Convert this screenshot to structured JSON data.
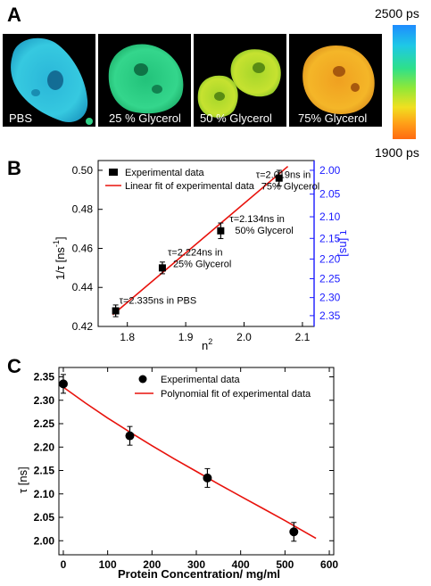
{
  "panels": {
    "a": {
      "letter": "A"
    },
    "b": {
      "letter": "B"
    },
    "c": {
      "letter": "C"
    }
  },
  "panel_a": {
    "image_labels": [
      "PBS",
      "25 % Glycerol",
      "50 % Glycerol",
      "75% Glycerol"
    ],
    "colorbar": {
      "top_label": "2500 ps",
      "bottom_label": "1900 ps"
    }
  },
  "chart_data": [
    {
      "panel": "B",
      "type": "scatter",
      "xlabel": "n",
      "xlabel_superscript": "2",
      "ylabel": "1/τ  [ns",
      "ylabel_superscript": "-1",
      "ylabel_suffix": "]",
      "y2label": "τ [ns]",
      "xlim": [
        1.75,
        2.12
      ],
      "ylim": [
        0.42,
        0.505
      ],
      "xticks": [
        "1.8",
        "1.9",
        "2.0",
        "2.1"
      ],
      "yticks": [
        "0.42",
        "0.44",
        "0.46",
        "0.48",
        "0.50"
      ],
      "y2ticks": [
        "2.00",
        "2.05",
        "2.10",
        "2.15",
        "2.20",
        "2.25",
        "2.30",
        "2.35"
      ],
      "legend": [
        "Experimental data",
        "Linear fit of experimental data"
      ],
      "legend_position": "top-left",
      "series": [
        {
          "name": "Experimental data",
          "x": [
            1.78,
            1.86,
            1.96,
            2.06
          ],
          "y": [
            0.428,
            0.45,
            0.469,
            0.496
          ],
          "error": [
            0.003,
            0.003,
            0.004,
            0.004
          ]
        },
        {
          "name": "Linear fit of experimental data",
          "x": [
            1.775,
            2.075
          ],
          "y": [
            0.426,
            0.502
          ]
        }
      ],
      "annotations": [
        {
          "line1": "τ=2.335ns in PBS",
          "line2": ""
        },
        {
          "line1": "τ=2.224ns in",
          "line2": "25% Glycerol"
        },
        {
          "line1": "τ=2.134ns in",
          "line2": "50% Glycerol"
        },
        {
          "line1": "τ=2.019ns in",
          "line2": "75% Glycerol"
        }
      ],
      "colors": {
        "fit": "#e8120c",
        "right_axis": "#1a1aff",
        "points": "#000000"
      }
    },
    {
      "panel": "C",
      "type": "scatter",
      "xlabel": "Protein Concentration/ mg/ml",
      "ylabel": "τ  [ns]",
      "xlim": [
        -10,
        610
      ],
      "ylim": [
        1.97,
        2.37
      ],
      "xticks": [
        "0",
        "100",
        "200",
        "300",
        "400",
        "500",
        "600"
      ],
      "yticks": [
        "2.00",
        "2.05",
        "2.10",
        "2.15",
        "2.20",
        "2.25",
        "2.30",
        "2.35"
      ],
      "legend": [
        "Experimental data",
        "Polynomial fit of experimental data"
      ],
      "legend_position": "top-right",
      "series": [
        {
          "name": "Experimental data",
          "x": [
            0,
            150,
            325,
            520
          ],
          "y": [
            2.335,
            2.224,
            2.134,
            2.019
          ],
          "error": [
            0.02,
            0.02,
            0.02,
            0.02
          ]
        },
        {
          "name": "Polynomial fit of experimental data",
          "x": [
            0,
            50,
            100,
            150,
            200,
            250,
            300,
            350,
            400,
            450,
            500,
            550,
            570
          ],
          "y": [
            2.328,
            2.294,
            2.262,
            2.232,
            2.203,
            2.175,
            2.148,
            2.121,
            2.095,
            2.069,
            2.043,
            2.016,
            2.005
          ]
        }
      ],
      "colors": {
        "fit": "#e8120c",
        "points": "#000000"
      }
    }
  ]
}
